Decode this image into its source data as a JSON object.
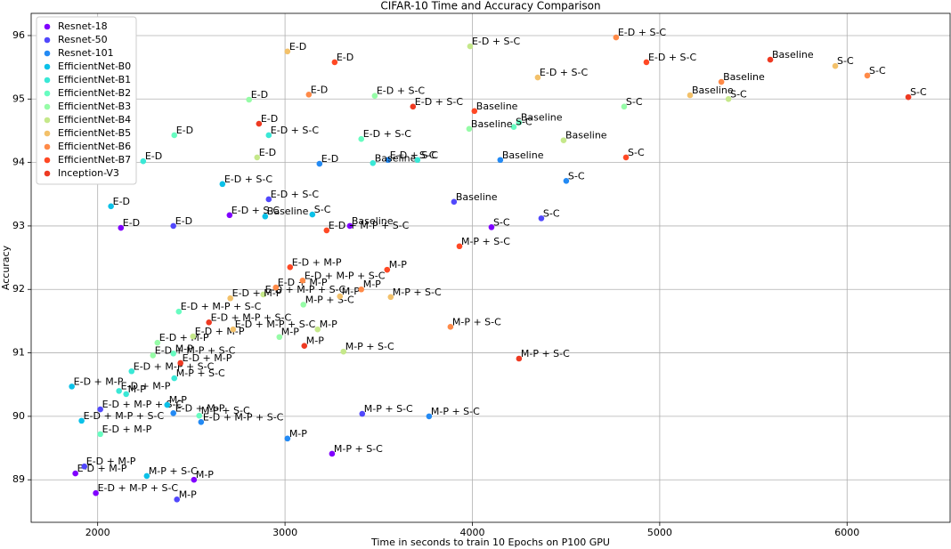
{
  "chart_data": {
    "type": "scatter",
    "title": "CIFAR-10 Time and Accuracy Comparison",
    "x_label": "Time in seconds to train 10 Epochs on P100 GPU",
    "y_label": "Accuracy",
    "xlim": [
      1645,
      6550
    ],
    "ylim": [
      88.33,
      96.35
    ],
    "xticks": [
      2000,
      3000,
      4000,
      5000,
      6000
    ],
    "yticks": [
      89,
      90,
      91,
      92,
      93,
      94,
      95,
      96
    ],
    "grid": true,
    "legend": "upper left",
    "series": [
      {
        "name": "Resnet-18",
        "color": "#8000ff",
        "labels": [
          "Baseline",
          "S-C",
          "E-D",
          "E-D + S-C",
          "M-P",
          "M-P + S-C",
          "E-D + M-P",
          "E-D + M-P + S-C"
        ],
        "x": [
          3346,
          4102,
          2124,
          2704,
          2514,
          3251,
          1881,
          1990
        ],
        "values": [
          93.0,
          92.98,
          92.97,
          93.17,
          89.0,
          89.41,
          89.1,
          88.79
        ]
      },
      {
        "name": "Resnet-50",
        "color": "#5148fc",
        "labels": [
          "Baseline",
          "S-C",
          "E-D",
          "E-D + S-C",
          "M-P",
          "M-P + S-C",
          "E-D + M-P",
          "E-D + M-P + S-C"
        ],
        "x": [
          3902,
          4368,
          2404,
          2913,
          2423,
          3412,
          1929,
          2014
        ],
        "values": [
          93.38,
          93.12,
          93.0,
          93.42,
          88.69,
          90.04,
          89.21,
          90.11
        ]
      },
      {
        "name": "Resnet-101",
        "color": "#238af4",
        "labels": [
          "Baseline",
          "S-C",
          "E-D",
          "E-D + S-C",
          "M-P",
          "M-P + S-C",
          "E-D + M-P",
          "E-D + M-P + S-C"
        ],
        "x": [
          4149,
          4501,
          3184,
          3550,
          3013,
          3769,
          2404,
          2552
        ],
        "values": [
          94.04,
          93.71,
          93.98,
          94.04,
          89.65,
          90.0,
          90.05,
          89.91
        ]
      },
      {
        "name": "EfficientNet-B0",
        "color": "#0bc1e8",
        "labels": [
          "Baseline",
          "S-C",
          "E-D",
          "E-D + S-C",
          "M-P",
          "M-P + S-C",
          "E-D + M-P",
          "E-D + M-P + S-C"
        ],
        "x": [
          2894,
          3146,
          2071,
          2666,
          2371,
          2262,
          1862,
          1914
        ],
        "values": [
          93.15,
          93.18,
          93.31,
          93.66,
          90.18,
          89.06,
          90.47,
          89.93
        ]
      },
      {
        "name": "EfficientNet-B1",
        "color": "#3ae8d6",
        "labels": [
          "Baseline",
          "S-C",
          "E-D",
          "E-D + S-C",
          "M-P",
          "M-P + S-C",
          "E-D + M-P",
          "E-D + M-P + S-C"
        ],
        "x": [
          3469,
          3707,
          2243,
          2913,
          2152,
          2409,
          2114,
          2181
        ],
        "values": [
          93.99,
          94.04,
          94.02,
          94.43,
          90.35,
          90.6,
          90.4,
          90.71
        ]
      },
      {
        "name": "EfficientNet-B2",
        "color": "#68fcc1",
        "labels": [
          "Baseline",
          "S-C",
          "E-D",
          "E-D + S-C",
          "M-P",
          "M-P + S-C",
          "E-D + M-P",
          "E-D + M-P + S-C"
        ],
        "x": [
          4249,
          4221,
          2409,
          3407,
          2404,
          2542,
          2014,
          2433
        ],
        "values": [
          94.63,
          94.56,
          94.43,
          94.37,
          90.99,
          90.01,
          89.72,
          91.65
        ]
      },
      {
        "name": "EfficientNet-B3",
        "color": "#96fca7",
        "labels": [
          "Baseline",
          "S-C",
          "E-D",
          "E-D + S-C",
          "M-P",
          "M-P + S-C",
          "E-D + M-P",
          "E-D + M-P + S-C"
        ],
        "x": [
          3983,
          4810,
          2808,
          3479,
          2970,
          3098,
          2319,
          2295
        ],
        "values": [
          94.53,
          94.88,
          94.99,
          95.05,
          91.25,
          91.76,
          91.16,
          90.96
        ]
      },
      {
        "name": "EfficientNet-B4",
        "color": "#c5e88a",
        "labels": [
          "Baseline",
          "S-C",
          "E-D",
          "E-D + S-C",
          "M-P",
          "M-P + S-C",
          "E-D + M-P",
          "E-D + M-P + S-C"
        ],
        "x": [
          4487,
          5367,
          2851,
          3988,
          3174,
          3312,
          2509,
          2884
        ],
        "values": [
          94.35,
          95.0,
          94.08,
          95.83,
          91.37,
          91.02,
          91.26,
          91.92
        ]
      },
      {
        "name": "EfficientNet-B5",
        "color": "#f3c16a",
        "labels": [
          "Baseline",
          "S-C",
          "E-D",
          "E-D + S-C",
          "M-P",
          "M-P + S-C",
          "E-D + M-P",
          "E-D + M-P + S-C"
        ],
        "x": [
          5162,
          5937,
          3013,
          4349,
          3293,
          3564,
          2708,
          2723
        ],
        "values": [
          95.06,
          95.52,
          95.75,
          95.34,
          91.89,
          91.88,
          91.86,
          91.37
        ]
      },
      {
        "name": "EfficientNet-B6",
        "color": "#ff8a48",
        "labels": [
          "Baseline",
          "S-C",
          "E-D",
          "E-D + S-C",
          "M-P",
          "M-P + S-C",
          "E-D + M-P",
          "E-D + M-P + S-C"
        ],
        "x": [
          5329,
          6108,
          3127,
          4767,
          3407,
          3883,
          2951,
          3094
        ],
        "values": [
          95.27,
          95.37,
          95.07,
          95.97,
          92.0,
          91.41,
          92.03,
          92.14
        ]
      },
      {
        "name": "EfficientNet-B7",
        "color": "#ff4824",
        "labels": [
          "Baseline",
          "S-C",
          "E-D",
          "E-D + S-C",
          "M-P",
          "M-P + S-C",
          "E-D + M-P",
          "E-D + M-P + S-C"
        ],
        "x": [
          4011,
          4820,
          3265,
          4929,
          3545,
          3931,
          3027,
          3222
        ],
        "values": [
          94.81,
          94.08,
          95.58,
          95.58,
          92.31,
          92.68,
          92.35,
          92.93
        ]
      },
      {
        "name": "Inception-V3",
        "color": "#ee3a22",
        "labels": [
          "Baseline",
          "S-C",
          "E-D",
          "E-D + S-C",
          "M-P",
          "M-P + S-C",
          "E-D + M-P",
          "E-D + M-P + S-C"
        ],
        "x": [
          5590,
          6327,
          2861,
          3683,
          3103,
          4249,
          2442,
          2594
        ],
        "values": [
          95.62,
          95.03,
          94.61,
          94.88,
          91.11,
          90.91,
          90.84,
          91.48
        ]
      }
    ]
  }
}
